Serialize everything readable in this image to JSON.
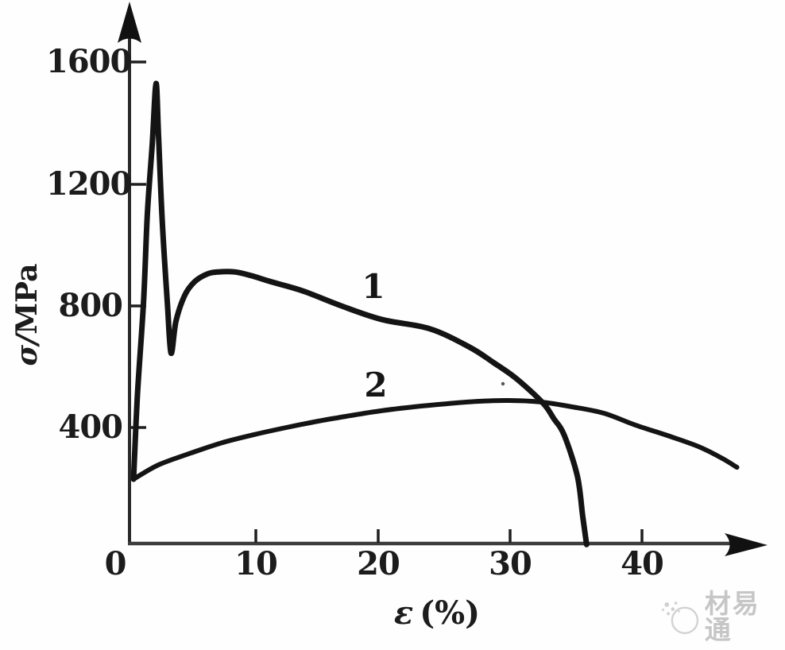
{
  "chart_data": {
    "type": "line",
    "title": "",
    "xlabel": "ε (%)",
    "ylabel": "σ/MPa",
    "xlabel_parts": {
      "symbol": "ε",
      "unit": "(%)"
    },
    "ylabel_parts": {
      "symbol": "σ/",
      "unit": "MPa"
    },
    "x_ticks": [
      0,
      10,
      20,
      30,
      40
    ],
    "y_ticks": [
      400,
      800,
      1200,
      1600
    ],
    "xlim": [
      0,
      51
    ],
    "ylim": [
      0,
      1800
    ],
    "grid": false,
    "legend_position": "inline-curve-labels",
    "series": [
      {
        "name": "1",
        "points": [
          [
            0.2,
            230
          ],
          [
            0.5,
            500
          ],
          [
            1.0,
            815
          ],
          [
            1.3,
            1100
          ],
          [
            1.7,
            1335
          ],
          [
            2.0,
            1530
          ],
          [
            2.2,
            1360
          ],
          [
            2.5,
            1075
          ],
          [
            2.9,
            815
          ],
          [
            3.2,
            645
          ],
          [
            3.6,
            750
          ],
          [
            4.3,
            835
          ],
          [
            5.1,
            880
          ],
          [
            6.1,
            905
          ],
          [
            7.0,
            912
          ],
          [
            8.3,
            912
          ],
          [
            9.6,
            900
          ],
          [
            11.2,
            880
          ],
          [
            13.8,
            850
          ],
          [
            17.0,
            800
          ],
          [
            20.3,
            755
          ],
          [
            23.9,
            725
          ],
          [
            26.9,
            665
          ],
          [
            28.7,
            615
          ],
          [
            30.5,
            560
          ],
          [
            32.5,
            480
          ],
          [
            33.3,
            430
          ],
          [
            34.1,
            375
          ],
          [
            35.1,
            240
          ],
          [
            35.5,
            110
          ],
          [
            35.8,
            15
          ]
        ]
      },
      {
        "name": "2",
        "points": [
          [
            0.2,
            230
          ],
          [
            2.2,
            277
          ],
          [
            4.8,
            316
          ],
          [
            7.3,
            350
          ],
          [
            9.9,
            377
          ],
          [
            12.5,
            400
          ],
          [
            15.1,
            421
          ],
          [
            17.7,
            439
          ],
          [
            20.2,
            455
          ],
          [
            22.7,
            468
          ],
          [
            25.1,
            478
          ],
          [
            27.5,
            486
          ],
          [
            29.9,
            489
          ],
          [
            32.3,
            484
          ],
          [
            34.7,
            468
          ],
          [
            37.1,
            447
          ],
          [
            39.5,
            408
          ],
          [
            41.9,
            374
          ],
          [
            44.3,
            337
          ],
          [
            46.1,
            298
          ],
          [
            47.2,
            269
          ]
        ]
      }
    ]
  },
  "watermark": {
    "text": "材易通"
  }
}
